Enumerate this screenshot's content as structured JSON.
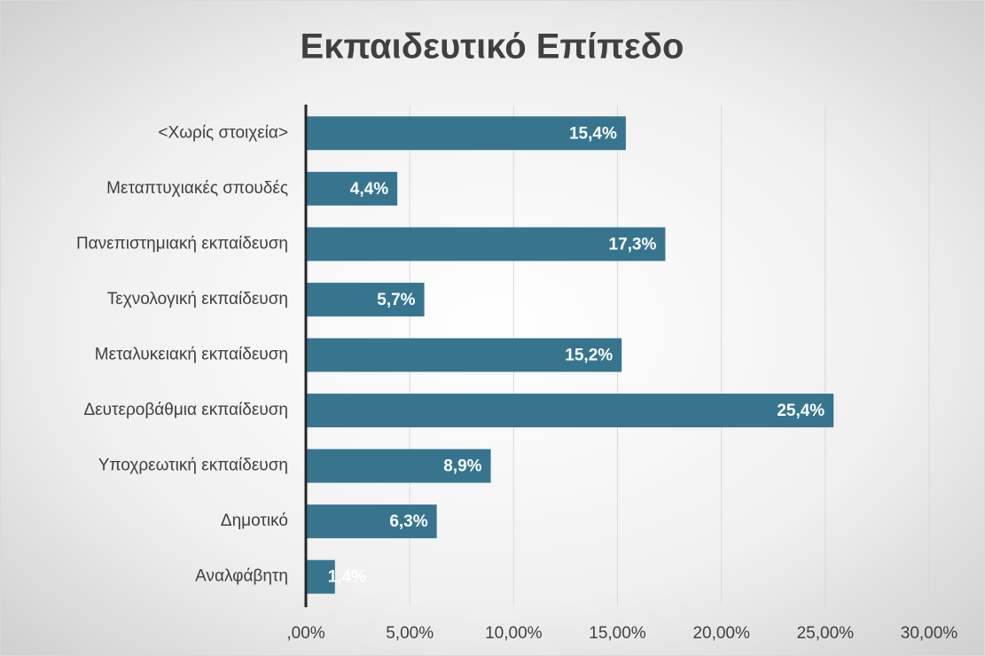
{
  "chart_data": {
    "type": "bar",
    "orientation": "horizontal",
    "title": "Εκπαιδευτικό Επίπεδο",
    "categories": [
      "<Χωρίς στοιχεία>",
      "Μεταπτυχιακές σπουδές",
      "Πανεπιστημιακή εκπαίδευση",
      "Τεχνολογική εκπαίδευση",
      "Μεταλυκειακή εκπαίδευση",
      "Δευτεροβάθμια εκπαίδευση",
      "Υποχρεωτική εκπαίδευση",
      "Δημοτικό",
      "Αναλφάβητη"
    ],
    "values": [
      15.4,
      4.4,
      17.3,
      5.7,
      15.2,
      25.4,
      8.9,
      6.3,
      1.4
    ],
    "value_labels": [
      "15,4%",
      "4,4%",
      "17,3%",
      "5,7%",
      "15,2%",
      "25,4%",
      "8,9%",
      "6,3%",
      "1,4%"
    ],
    "color": "#37758f",
    "xlim": [
      0,
      30
    ],
    "xticks": [
      {
        "value": 0,
        "label": ",00%"
      },
      {
        "value": 5,
        "label": "5,00%"
      },
      {
        "value": 10,
        "label": "10,00%"
      },
      {
        "value": 15,
        "label": "15,00%"
      },
      {
        "value": 20,
        "label": "20,00%"
      },
      {
        "value": 25,
        "label": "25,00%"
      },
      {
        "value": 30,
        "label": "30,00%"
      }
    ],
    "grid": true
  }
}
